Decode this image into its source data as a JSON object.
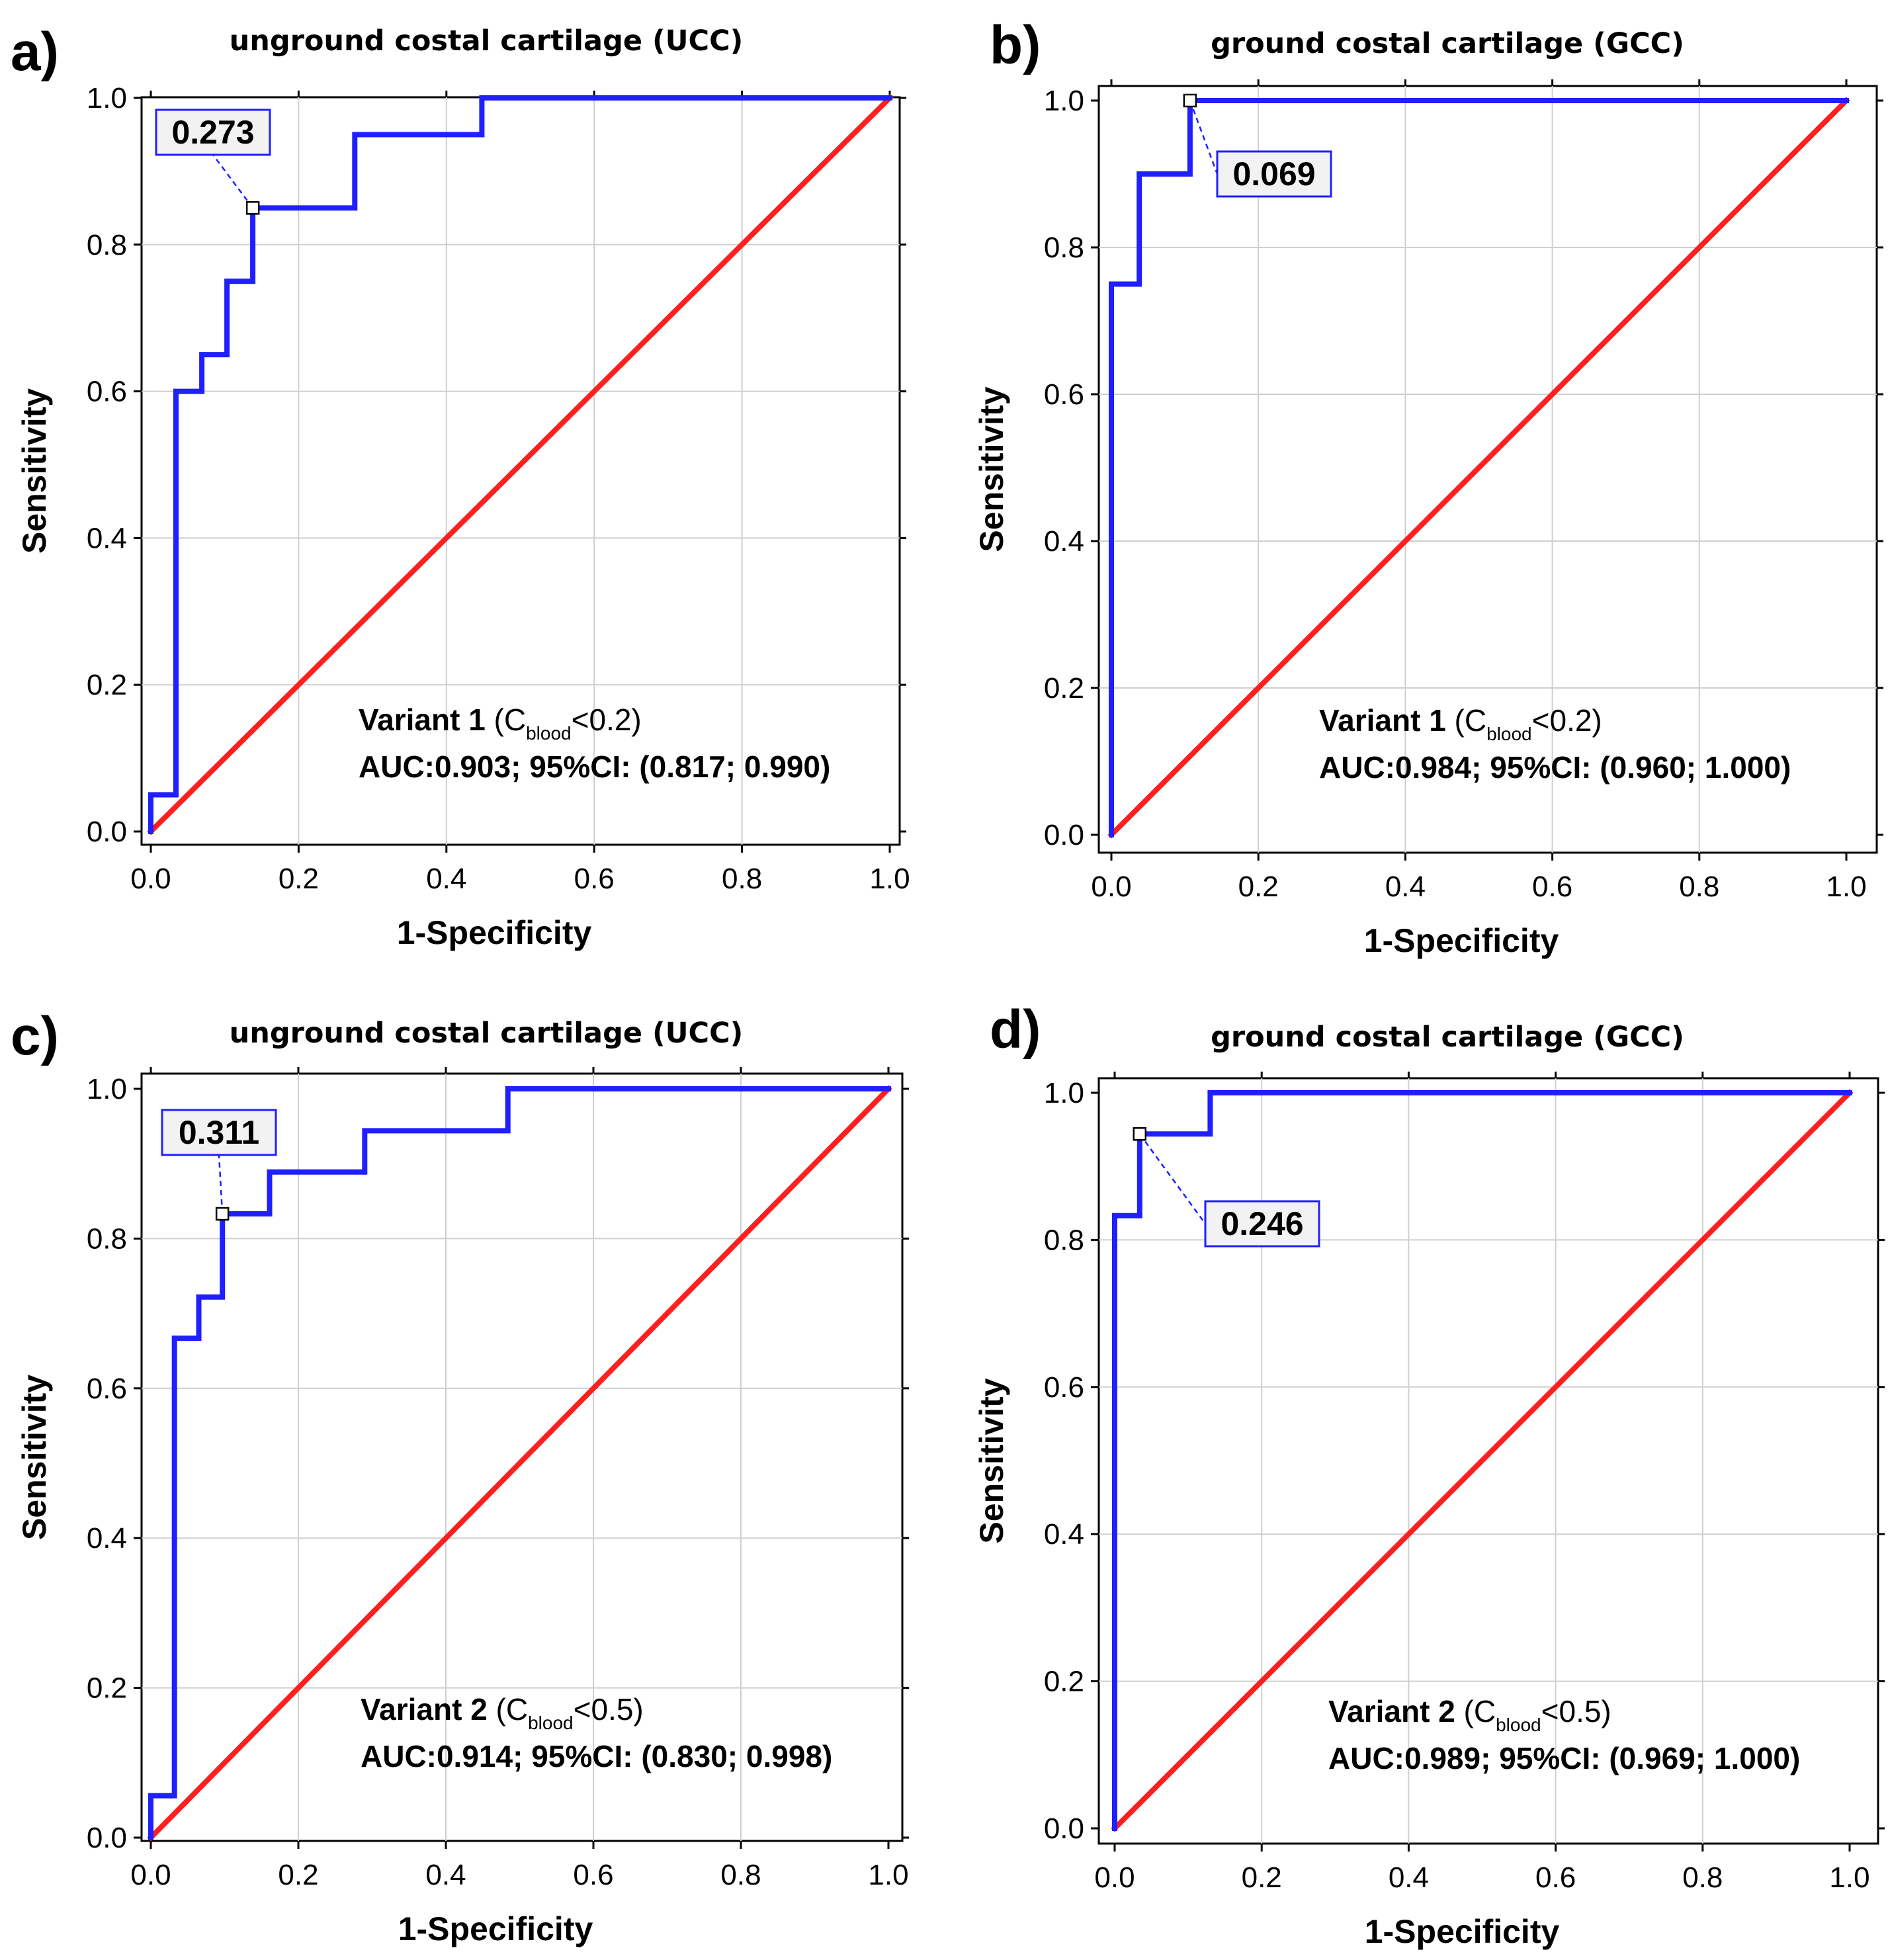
{
  "chart_data": [
    {
      "panel": "a)",
      "type": "line",
      "title": "unground costal cartilage (UCC)",
      "xlabel": "1-Specificity",
      "ylabel": "Sensitivity",
      "xlim": [
        0,
        1
      ],
      "ylim": [
        0,
        1
      ],
      "ticks": [
        "0.0",
        "0.2",
        "0.4",
        "0.6",
        "0.8",
        "1.0"
      ],
      "grid": true,
      "series": [
        {
          "color": "#1f1fff",
          "x": [
            0,
            0,
            0.034,
            0.034,
            0.069,
            0.069,
            0.103,
            0.103,
            0.138,
            0.138,
            0.276,
            0.276,
            0.448,
            0.448,
            1.0
          ],
          "y": [
            0,
            0.05,
            0.05,
            0.6,
            0.6,
            0.65,
            0.65,
            0.75,
            0.75,
            0.85,
            0.85,
            0.95,
            0.95,
            1.0,
            1.0
          ]
        },
        {
          "color": "#ff1f1f",
          "x": [
            0,
            1
          ],
          "y": [
            0,
            1
          ]
        }
      ],
      "cutoff": {
        "label": "0.273",
        "x": 0.138,
        "y": 0.85
      },
      "variant": {
        "name": "Variant 1",
        "open": " (C",
        "sub": "blood",
        "close": "<0.2)"
      },
      "auc": "AUC:0.903; 95%CI: (0.817; 0.990)"
    },
    {
      "panel": "b)",
      "type": "line",
      "title": "ground costal cartilage (GCC)",
      "xlabel": "1-Specificity",
      "ylabel": "Sensitivity",
      "xlim": [
        0,
        1
      ],
      "ylim": [
        0,
        1
      ],
      "ticks": [
        "0.0",
        "0.2",
        "0.4",
        "0.6",
        "0.8",
        "1.0"
      ],
      "grid": true,
      "series": [
        {
          "color": "#1f1fff",
          "x": [
            0,
            0,
            0.038,
            0.038,
            0.107,
            0.107,
            1.0
          ],
          "y": [
            0,
            0.75,
            0.75,
            0.9,
            0.9,
            1.0,
            1.0
          ]
        },
        {
          "color": "#ff1f1f",
          "x": [
            0,
            1
          ],
          "y": [
            0,
            1
          ]
        }
      ],
      "cutoff": {
        "label": "0.069",
        "x": 0.107,
        "y": 1.0
      },
      "variant": {
        "name": "Variant 1",
        "open": " (C",
        "sub": "blood",
        "close": "<0.2)"
      },
      "auc": "AUC:0.984; 95%CI: (0.960; 1.000)"
    },
    {
      "panel": "c)",
      "type": "line",
      "title": "unground costal cartilage (UCC)",
      "xlabel": "1-Specificity",
      "ylabel": "Sensitivity",
      "xlim": [
        0,
        1
      ],
      "ylim": [
        0,
        1
      ],
      "ticks": [
        "0.0",
        "0.2",
        "0.4",
        "0.6",
        "0.8",
        "1.0"
      ],
      "grid": true,
      "series": [
        {
          "color": "#1f1fff",
          "x": [
            0,
            0,
            0.032,
            0.032,
            0.065,
            0.065,
            0.097,
            0.097,
            0.161,
            0.161,
            0.29,
            0.29,
            0.484,
            0.484,
            1.0
          ],
          "y": [
            0,
            0.056,
            0.056,
            0.667,
            0.667,
            0.722,
            0.722,
            0.833,
            0.833,
            0.889,
            0.889,
            0.944,
            0.944,
            1.0,
            1.0
          ]
        },
        {
          "color": "#ff1f1f",
          "x": [
            0,
            1
          ],
          "y": [
            0,
            1
          ]
        }
      ],
      "cutoff": {
        "label": "0.311",
        "x": 0.097,
        "y": 0.833
      },
      "variant": {
        "name": "Variant 2",
        "open": " (C",
        "sub": "blood",
        "close": "<0.5)"
      },
      "auc": "AUC:0.914; 95%CI: (0.830; 0.998)"
    },
    {
      "panel": "d)",
      "type": "line",
      "title": "ground costal cartilage (GCC)",
      "xlabel": "1-Specificity",
      "ylabel": "Sensitivity",
      "xlim": [
        0,
        1
      ],
      "ylim": [
        0,
        1
      ],
      "ticks": [
        "0.0",
        "0.2",
        "0.4",
        "0.6",
        "0.8",
        "1.0"
      ],
      "grid": true,
      "series": [
        {
          "color": "#1f1fff",
          "x": [
            0,
            0,
            0.034,
            0.034,
            0.13,
            0.13,
            1.0
          ],
          "y": [
            0,
            0.833,
            0.833,
            0.944,
            0.944,
            1.0,
            1.0
          ]
        },
        {
          "color": "#ff1f1f",
          "x": [
            0,
            1
          ],
          "y": [
            0,
            1
          ]
        }
      ],
      "cutoff": {
        "label": "0.246",
        "x": 0.034,
        "y": 0.944
      },
      "variant": {
        "name": "Variant 2",
        "open": " (C",
        "sub": "blood",
        "close": "<0.5)"
      },
      "auc": "AUC:0.989; 95%CI: (0.969; 1.000)"
    }
  ]
}
